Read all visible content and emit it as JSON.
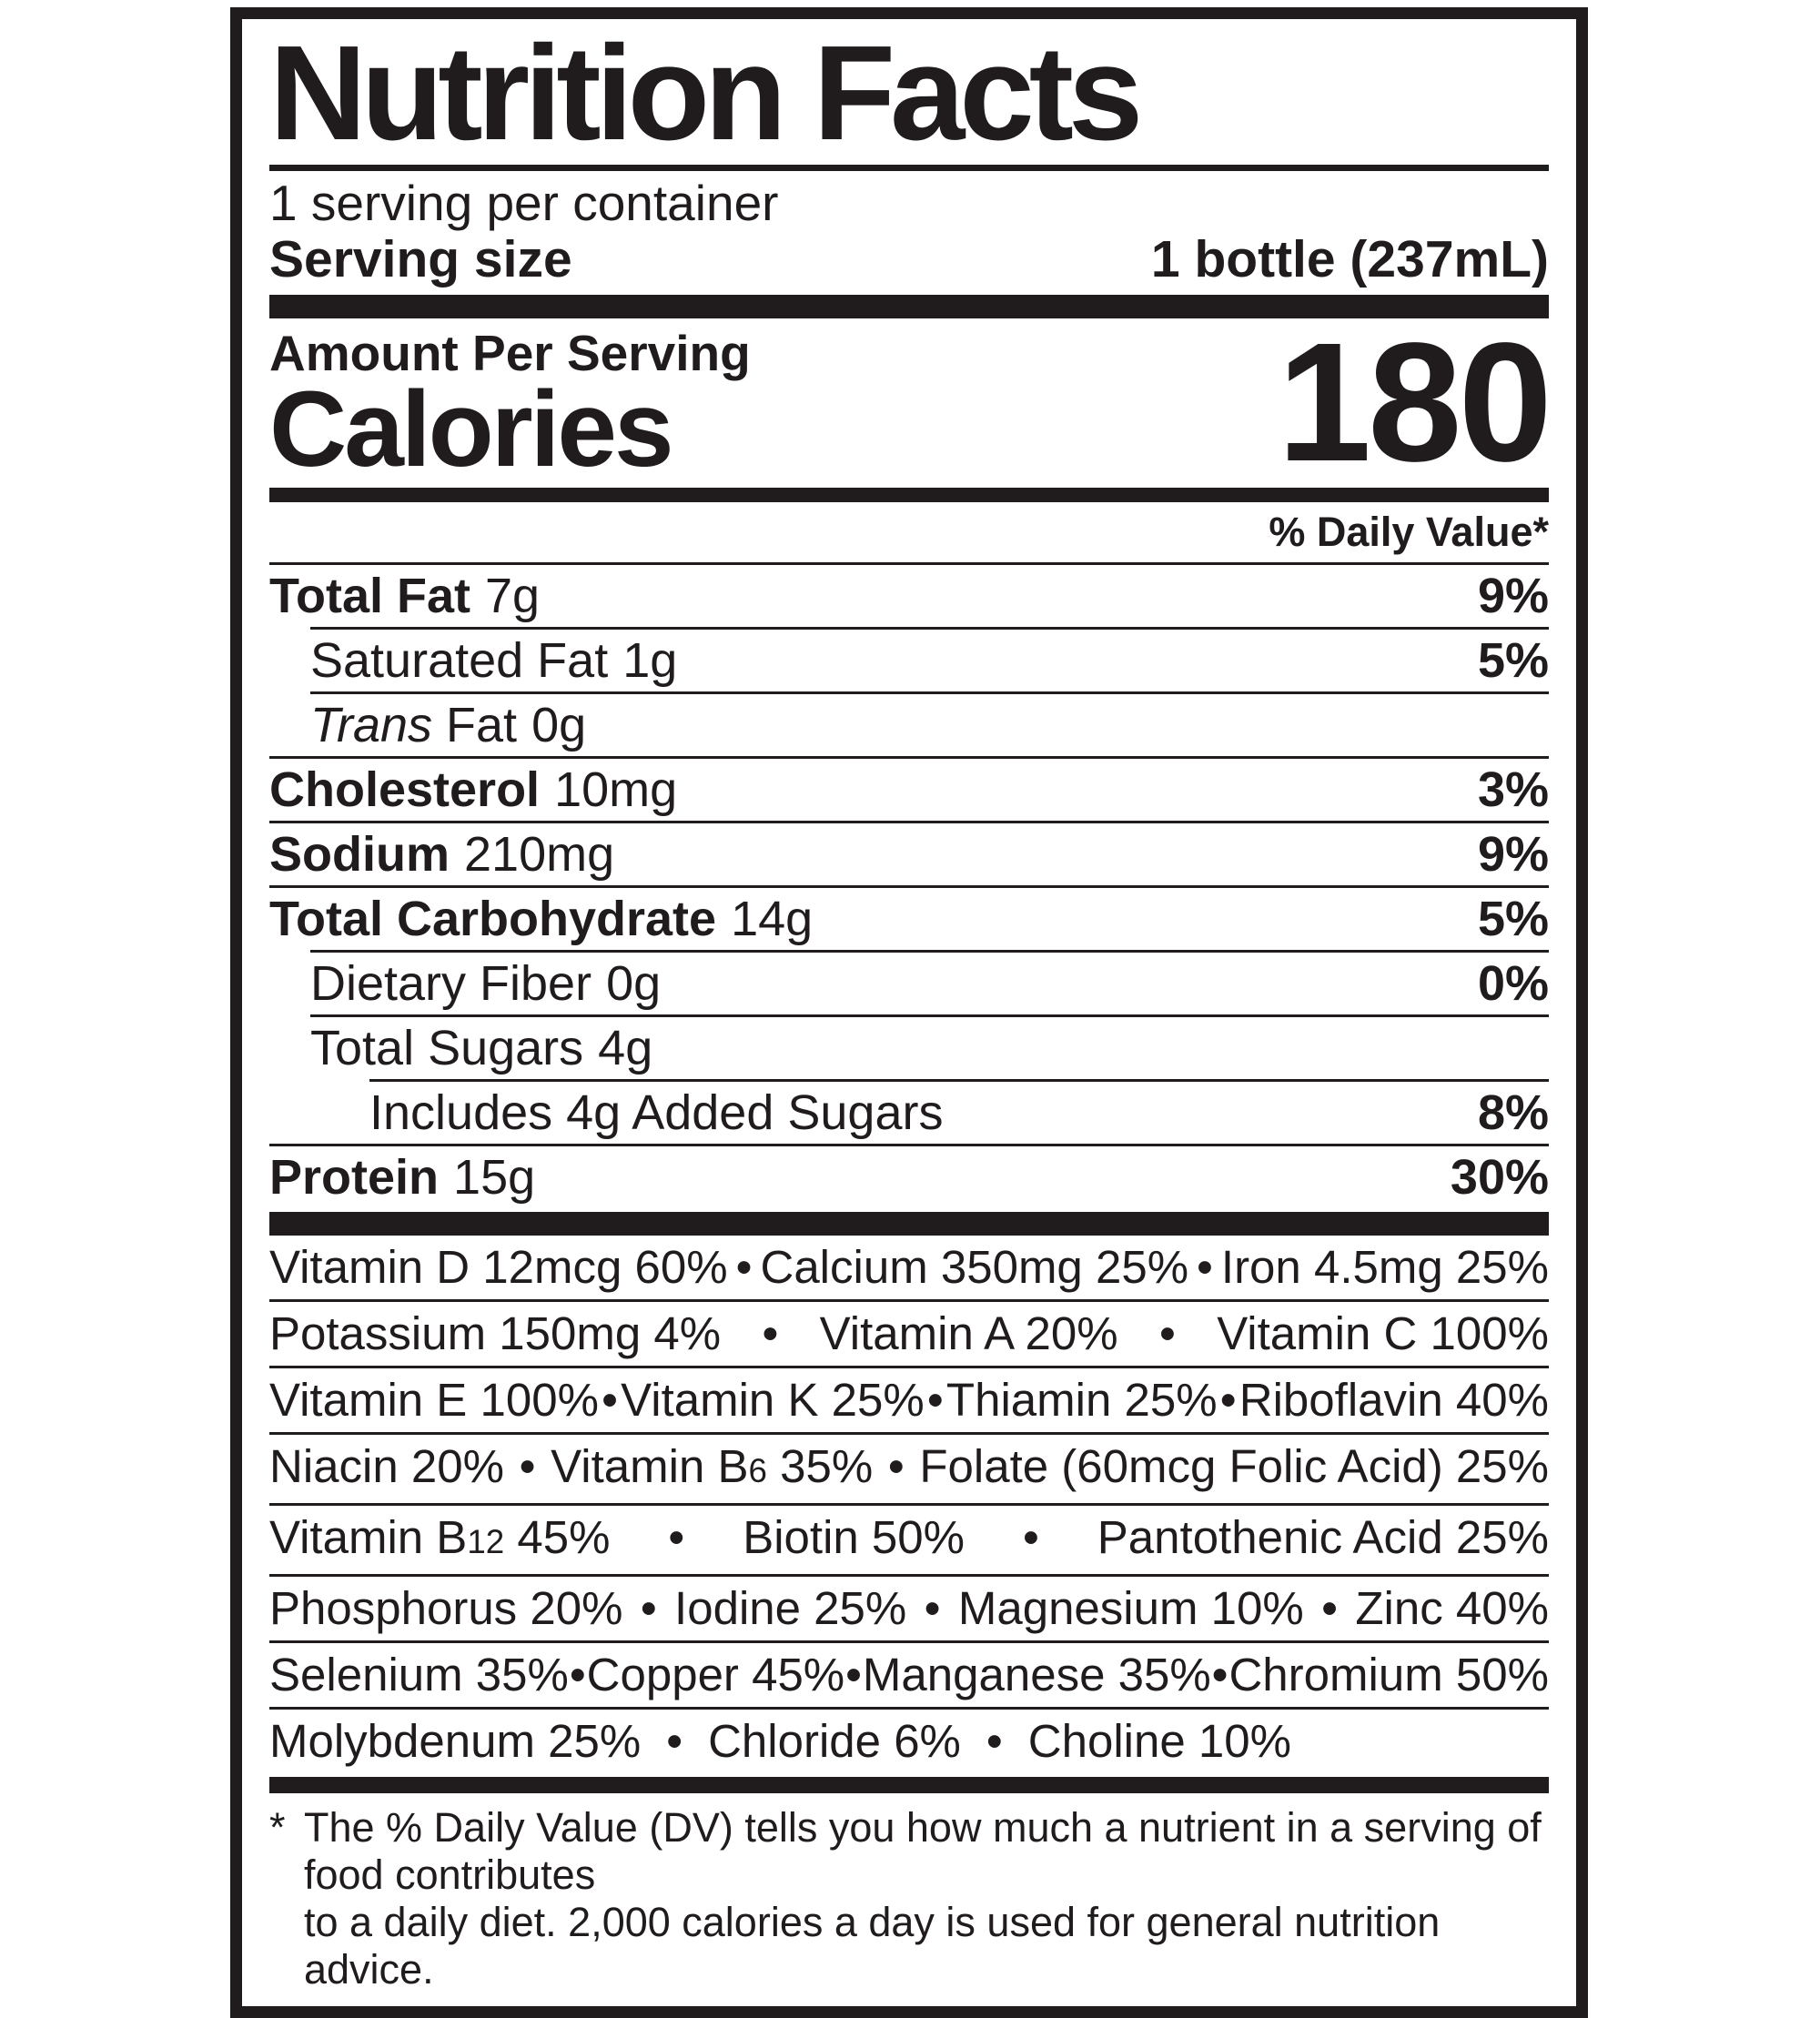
{
  "label": {
    "title": "Nutrition Facts",
    "servings_per_container": "1 serving per container",
    "serving_size": {
      "label": "Serving size",
      "value": "1 bottle (237mL)"
    },
    "calories": {
      "amount_per_serving": "Amount Per Serving",
      "label": "Calories",
      "value": "180"
    },
    "daily_value_header": "% Daily Value*",
    "bullet": "•",
    "nutrients": [
      {
        "name": "Total Fat",
        "amount": "7g",
        "dv": "9%"
      },
      {
        "name": "Saturated Fat",
        "amount": "1g",
        "dv": "5%"
      },
      {
        "name_italic": "Trans",
        "name": " Fat",
        "amount": "0g",
        "dv": ""
      },
      {
        "name": "Cholesterol",
        "amount": "10mg",
        "dv": "3%"
      },
      {
        "name": "Sodium",
        "amount": "210mg",
        "dv": "9%"
      },
      {
        "name": "Total Carbohydrate",
        "amount": "14g",
        "dv": "5%"
      },
      {
        "name": "Dietary Fiber",
        "amount": "0g",
        "dv": "0%"
      },
      {
        "name": "Total Sugars",
        "amount": "4g",
        "dv": ""
      },
      {
        "name": "Includes 4g Added Sugars",
        "amount": "",
        "dv": "8%"
      },
      {
        "name": "Protein",
        "amount": "15g",
        "dv": "30%"
      }
    ],
    "micronutrients": {
      "row1": {
        "a": "Vitamin D 12mcg 60%",
        "b": "Calcium 350mg 25%",
        "c": "Iron 4.5mg 25%"
      },
      "row2": {
        "a": "Potassium 150mg 4%",
        "b": "Vitamin A 20%",
        "c": "Vitamin C 100%"
      },
      "row3": {
        "a": "Vitamin E 100%",
        "b": "Vitamin K 25%",
        "c": "Thiamin 25%",
        "d": "Riboflavin 40%"
      },
      "row4": {
        "a": "Niacin 20%",
        "b_pre": "Vitamin B",
        "b_sub": "6",
        "b_post": " 35%",
        "c": "Folate (60mcg Folic Acid) 25%"
      },
      "row5": {
        "a_pre": "Vitamin B",
        "a_sub": "12",
        "a_post": " 45%",
        "b": "Biotin 50%",
        "c": "Pantothenic Acid 25%"
      },
      "row6": {
        "a": "Phosphorus 20%",
        "b": "Iodine 25%",
        "c": "Magnesium 10%",
        "d": "Zinc 40%"
      },
      "row7": {
        "a": "Selenium 35%",
        "b": "Copper 45%",
        "c": "Manganese 35%",
        "d": "Chromium 50%"
      },
      "row8": {
        "a": "Molybdenum 25%",
        "b": "Chloride 6%",
        "c": "Choline 10%"
      }
    },
    "footnote": {
      "marker": "*",
      "line1": "The % Daily Value (DV) tells you how much a nutrient in a serving of food contributes",
      "line2": "to a daily diet. 2,000 calories a day is used for general nutrition advice."
    },
    "ink_color": "#201c1d"
  }
}
